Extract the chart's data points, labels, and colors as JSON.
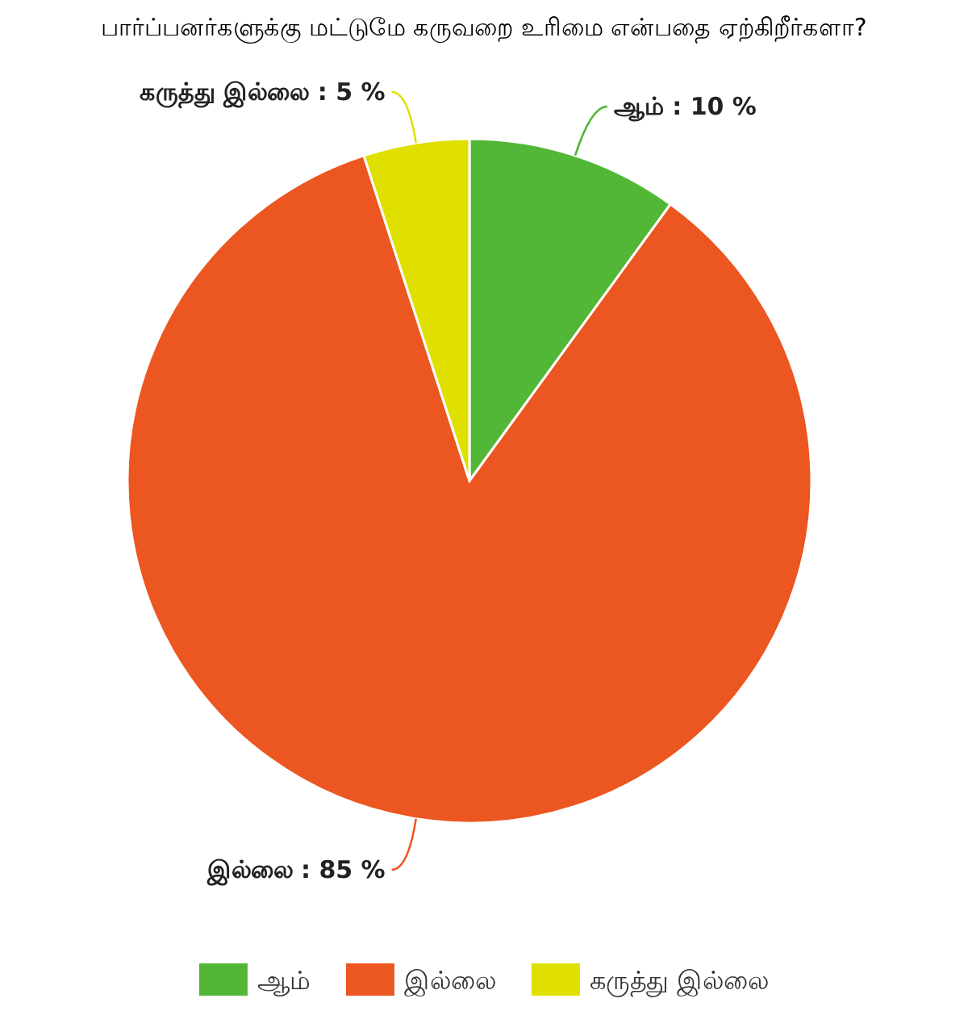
{
  "chart_data": {
    "type": "pie",
    "title": "பார்ப்பனர்களுக்கு மட்டுமே கருவறை உரிமை என்பதை ஏற்கிறீர்களா?",
    "categories": [
      "ஆம்",
      "இல்லை",
      "கருத்து இல்லை"
    ],
    "values": [
      10,
      85,
      5
    ],
    "colors": [
      "#52b736",
      "#ec5620",
      "#dfe000"
    ],
    "value_labels": [
      "ஆம் : 10 %",
      "இல்லை : 85 %",
      "கருத்து இல்லை : 5 %"
    ],
    "legend": "bottom"
  }
}
